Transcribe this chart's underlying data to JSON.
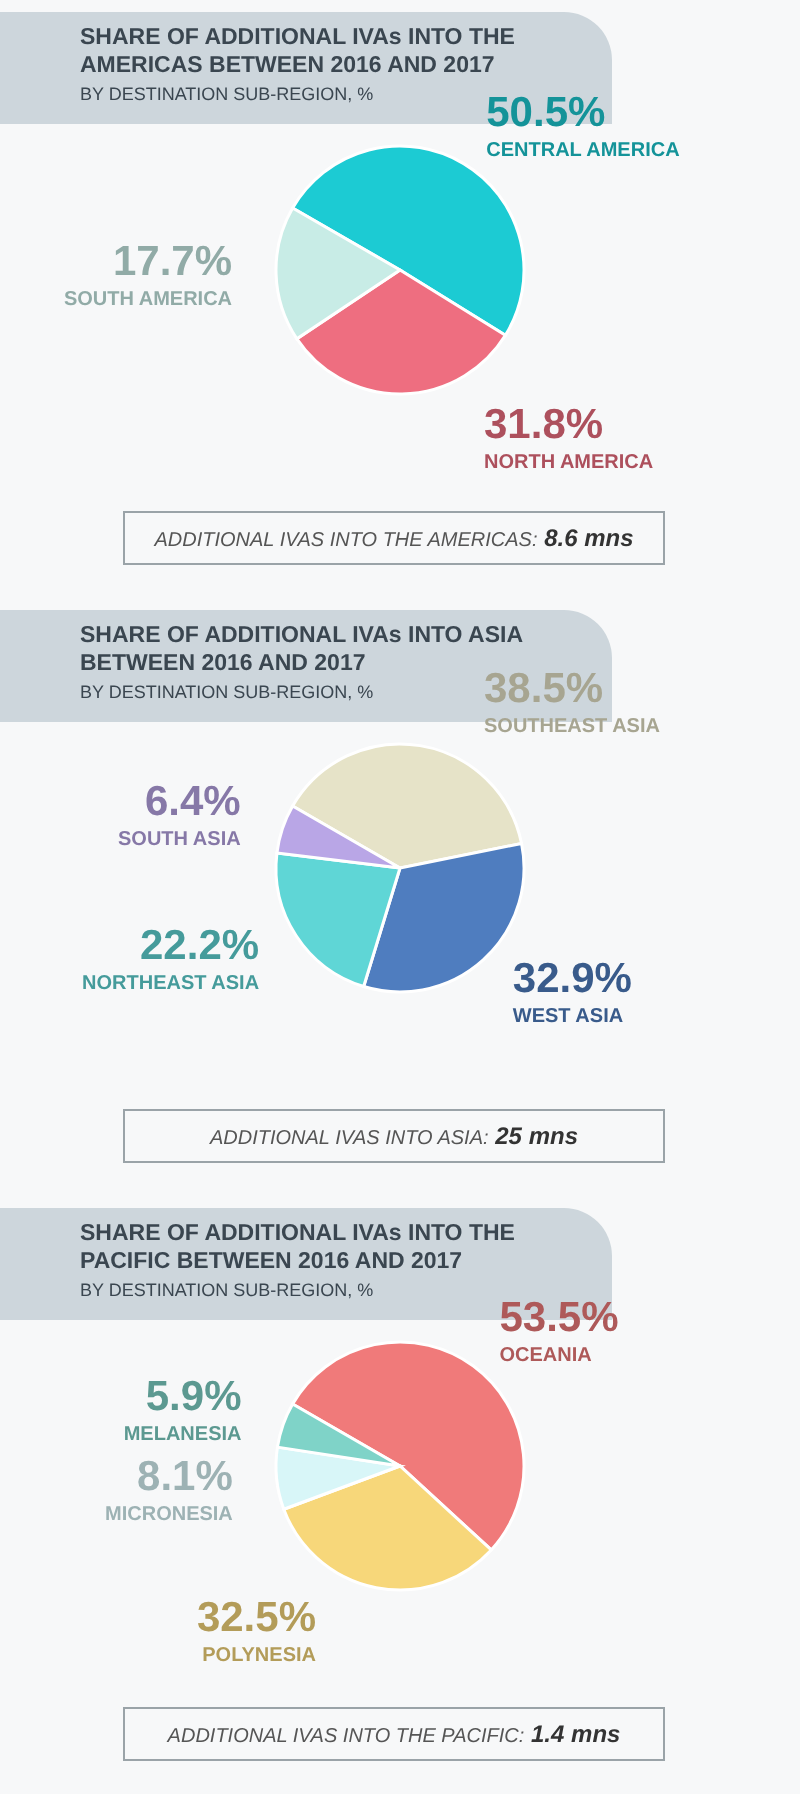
{
  "chart_data": [
    {
      "type": "pie",
      "title": "SHARE OF ADDITIONAL IVAs INTO THE AMERICAS BETWEEN 2016 AND 2017",
      "subtitle": "BY DESTINATION SUB-REGION, %",
      "categories": [
        "CENTRAL AMERICA",
        "NORTH AMERICA",
        "SOUTH AMERICA"
      ],
      "values": [
        50.5,
        31.8,
        17.7
      ],
      "colors": [
        "#1ccbd3",
        "#ee6e80",
        "#c8ece6"
      ],
      "value_labels": [
        "50.5%",
        "31.8%",
        "17.7%"
      ],
      "annotations": [
        "ADDITIONAL IVAS INTO THE AMERICAS: 8.6 mns"
      ]
    },
    {
      "type": "pie",
      "title": "SHARE OF ADDITIONAL IVAs INTO ASIA BETWEEN 2016 AND 2017",
      "subtitle": "BY DESTINATION SUB-REGION, %",
      "categories": [
        "SOUTHEAST ASIA",
        "WEST ASIA",
        "NORTHEAST ASIA",
        "SOUTH ASIA"
      ],
      "values": [
        38.5,
        32.9,
        22.2,
        6.4
      ],
      "colors": [
        "#e6e3c8",
        "#4f7dbf",
        "#5fd6d6",
        "#b9a6e6"
      ],
      "value_labels": [
        "38.5%",
        "32.9%",
        "22.2%",
        "6.4%"
      ],
      "annotations": [
        "ADDITIONAL IVAS INTO ASIA: 25 mns"
      ]
    },
    {
      "type": "pie",
      "title": "SHARE OF ADDITIONAL IVAs INTO THE PACIFIC BETWEEN 2016 AND 2017",
      "subtitle": "BY DESTINATION SUB-REGION, %",
      "categories": [
        "OCEANIA",
        "POLYNESIA",
        "MICRONESIA",
        "MELANESIA"
      ],
      "values": [
        53.5,
        32.5,
        8.1,
        5.9
      ],
      "colors": [
        "#f07a7a",
        "#f7d77a",
        "#d8f6f8",
        "#7fd3c8"
      ],
      "value_labels": [
        "53.5%",
        "32.5%",
        "8.1%",
        "5.9%"
      ],
      "annotations": [
        "ADDITIONAL IVAS INTO THE PACIFIC: 1.4 mns"
      ]
    }
  ]
}
